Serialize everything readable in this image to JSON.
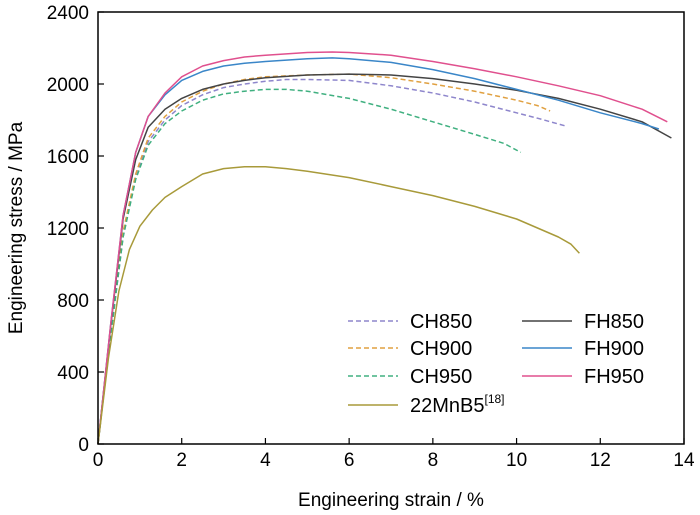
{
  "chart_data": {
    "type": "line",
    "xlabel": "Engineering strain / %",
    "ylabel": "Engineering stress / MPa",
    "xlim": [
      0,
      14
    ],
    "ylim": [
      0,
      2400
    ],
    "xticks": [
      "0",
      "2",
      "4",
      "6",
      "8",
      "10",
      "12",
      "14"
    ],
    "yticks": [
      "0",
      "400",
      "800",
      "1200",
      "1600",
      "2000",
      "2400"
    ],
    "grid": false,
    "legend_position": "bottom-right",
    "series": [
      {
        "name": "CH850",
        "color": "#8e86cc",
        "style": "dashed",
        "points": [
          [
            0,
            0
          ],
          [
            0.3,
            600
          ],
          [
            0.6,
            1150
          ],
          [
            0.9,
            1480
          ],
          [
            1.2,
            1680
          ],
          [
            1.6,
            1800
          ],
          [
            2,
            1880
          ],
          [
            2.5,
            1940
          ],
          [
            3,
            1980
          ],
          [
            3.5,
            2000
          ],
          [
            4,
            2015
          ],
          [
            4.5,
            2025
          ],
          [
            5,
            2025
          ],
          [
            6,
            2020
          ],
          [
            7,
            1990
          ],
          [
            8,
            1950
          ],
          [
            9,
            1900
          ],
          [
            10,
            1840
          ],
          [
            10.5,
            1810
          ],
          [
            11.2,
            1765
          ]
        ]
      },
      {
        "name": "CH900",
        "color": "#e0a040",
        "style": "dashed",
        "points": [
          [
            0,
            0
          ],
          [
            0.3,
            620
          ],
          [
            0.6,
            1180
          ],
          [
            0.9,
            1500
          ],
          [
            1.2,
            1700
          ],
          [
            1.6,
            1820
          ],
          [
            2,
            1900
          ],
          [
            2.5,
            1960
          ],
          [
            3,
            2000
          ],
          [
            3.5,
            2025
          ],
          [
            4,
            2040
          ],
          [
            5,
            2050
          ],
          [
            6,
            2055
          ],
          [
            7,
            2035
          ],
          [
            8,
            2000
          ],
          [
            9,
            1960
          ],
          [
            10,
            1910
          ],
          [
            10.5,
            1880
          ],
          [
            10.8,
            1850
          ]
        ]
      },
      {
        "name": "CH950",
        "color": "#40b080",
        "style": "dashed",
        "points": [
          [
            0,
            0
          ],
          [
            0.3,
            600
          ],
          [
            0.6,
            1150
          ],
          [
            0.9,
            1470
          ],
          [
            1.2,
            1660
          ],
          [
            1.6,
            1780
          ],
          [
            2,
            1850
          ],
          [
            2.5,
            1910
          ],
          [
            3,
            1945
          ],
          [
            3.5,
            1960
          ],
          [
            4,
            1970
          ],
          [
            4.5,
            1970
          ],
          [
            5,
            1960
          ],
          [
            6,
            1920
          ],
          [
            7,
            1860
          ],
          [
            8,
            1790
          ],
          [
            9,
            1720
          ],
          [
            9.7,
            1670
          ],
          [
            10.1,
            1620
          ]
        ]
      },
      {
        "name": "FH850",
        "color": "#444444",
        "style": "solid",
        "points": [
          [
            0,
            0
          ],
          [
            0.3,
            650
          ],
          [
            0.6,
            1250
          ],
          [
            0.9,
            1580
          ],
          [
            1.2,
            1760
          ],
          [
            1.6,
            1860
          ],
          [
            2,
            1920
          ],
          [
            2.5,
            1970
          ],
          [
            3,
            2000
          ],
          [
            3.5,
            2020
          ],
          [
            4,
            2035
          ],
          [
            5,
            2050
          ],
          [
            6,
            2055
          ],
          [
            7,
            2050
          ],
          [
            8,
            2030
          ],
          [
            9,
            2000
          ],
          [
            10,
            1965
          ],
          [
            11,
            1920
          ],
          [
            12,
            1860
          ],
          [
            13,
            1790
          ],
          [
            13.7,
            1700
          ]
        ]
      },
      {
        "name": "FH900",
        "color": "#3a86c8",
        "style": "solid",
        "points": [
          [
            0,
            0
          ],
          [
            0.3,
            660
          ],
          [
            0.6,
            1270
          ],
          [
            0.9,
            1620
          ],
          [
            1.2,
            1820
          ],
          [
            1.6,
            1940
          ],
          [
            2,
            2020
          ],
          [
            2.5,
            2070
          ],
          [
            3,
            2100
          ],
          [
            3.5,
            2115
          ],
          [
            4,
            2125
          ],
          [
            5,
            2140
          ],
          [
            5.6,
            2145
          ],
          [
            6,
            2140
          ],
          [
            7,
            2120
          ],
          [
            8,
            2080
          ],
          [
            9,
            2030
          ],
          [
            10,
            1970
          ],
          [
            11,
            1910
          ],
          [
            12,
            1840
          ],
          [
            13,
            1780
          ],
          [
            13.4,
            1750
          ]
        ]
      },
      {
        "name": "FH950",
        "color": "#e0508e",
        "style": "solid",
        "points": [
          [
            0,
            0
          ],
          [
            0.3,
            660
          ],
          [
            0.6,
            1270
          ],
          [
            0.9,
            1620
          ],
          [
            1.2,
            1820
          ],
          [
            1.6,
            1950
          ],
          [
            2,
            2040
          ],
          [
            2.5,
            2100
          ],
          [
            3,
            2130
          ],
          [
            3.5,
            2150
          ],
          [
            4,
            2160
          ],
          [
            5,
            2175
          ],
          [
            5.6,
            2178
          ],
          [
            6,
            2175
          ],
          [
            7,
            2160
          ],
          [
            8,
            2125
          ],
          [
            9,
            2085
          ],
          [
            10,
            2040
          ],
          [
            11,
            1990
          ],
          [
            12,
            1935
          ],
          [
            13,
            1860
          ],
          [
            13.6,
            1790
          ]
        ]
      },
      {
        "name": "22MnB5",
        "name_sup": "[18]",
        "color": "#a89a3a",
        "style": "solid",
        "points": [
          [
            0,
            0
          ],
          [
            0.25,
            480
          ],
          [
            0.5,
            850
          ],
          [
            0.75,
            1080
          ],
          [
            1,
            1210
          ],
          [
            1.3,
            1300
          ],
          [
            1.6,
            1370
          ],
          [
            2,
            1430
          ],
          [
            2.5,
            1500
          ],
          [
            3,
            1530
          ],
          [
            3.5,
            1540
          ],
          [
            4,
            1540
          ],
          [
            4.5,
            1530
          ],
          [
            5,
            1515
          ],
          [
            6,
            1480
          ],
          [
            7,
            1430
          ],
          [
            8,
            1380
          ],
          [
            9,
            1320
          ],
          [
            10,
            1250
          ],
          [
            10.5,
            1200
          ],
          [
            11,
            1150
          ],
          [
            11.3,
            1110
          ],
          [
            11.5,
            1060
          ]
        ]
      }
    ]
  }
}
